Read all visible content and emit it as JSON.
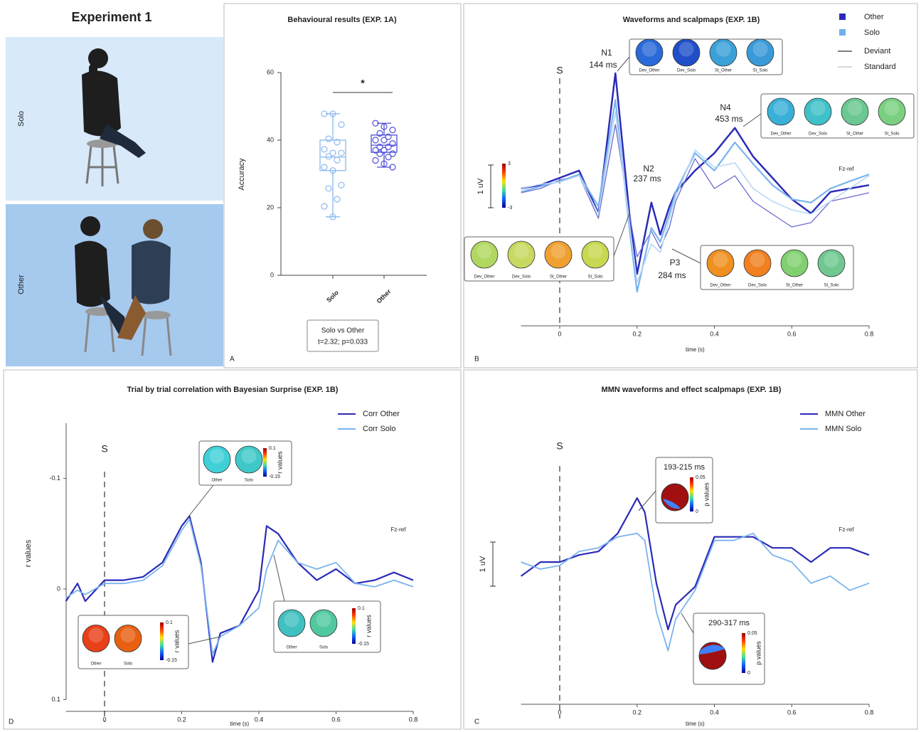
{
  "figure_title": "Experiment 1",
  "photos": [
    {
      "label": "Solo"
    },
    {
      "label": "Other"
    }
  ],
  "chart_data": [
    {
      "type": "box",
      "panel": "A",
      "title": "Behavioural results (EXP. 1A)",
      "ylabel": "Accuracy",
      "categories": [
        "Solo",
        "Other"
      ],
      "ylim": [
        0,
        60
      ],
      "yticks": [
        0,
        20,
        40,
        60
      ],
      "series": [
        {
          "color": "#8ab8ef",
          "values": [
            47.8,
            47.8,
            44.6,
            40.4,
            39.4,
            37.3,
            36.2,
            36.2,
            35.2,
            34.1,
            32,
            31,
            26.7,
            25.7,
            22.5,
            20.4,
            17.3
          ],
          "box": {
            "whisker_low": 17.3,
            "q1": 31,
            "median": 35,
            "q3": 40,
            "whisker_high": 47.8
          }
        },
        {
          "color": "#4f4fd8",
          "values": [
            45,
            44,
            43,
            42,
            41,
            40,
            40,
            39,
            38,
            38,
            37,
            37,
            36,
            36,
            35,
            34,
            33,
            32
          ],
          "box": {
            "whisker_low": 32,
            "q1": 36.4,
            "median": 38.5,
            "q3": 41.5,
            "whisker_high": 45
          }
        }
      ],
      "significance": "*",
      "test_result": [
        "Solo vs Other",
        "t=2.32; p=0.033"
      ]
    },
    {
      "type": "line",
      "panel": "B",
      "title": "Waveforms and scalpmaps (EXP. 1B)",
      "xlabel": "time (s)",
      "x": [
        -0.1,
        -0.05,
        0,
        0.05,
        0.1,
        0.144,
        0.18,
        0.2,
        0.237,
        0.26,
        0.284,
        0.3,
        0.35,
        0.4,
        0.453,
        0.5,
        0.55,
        0.6,
        0.65,
        0.7,
        0.75,
        0.8
      ],
      "xlim": [
        -0.1,
        0.8
      ],
      "xticks": [
        0,
        0.2,
        0.4,
        0.6,
        0.8
      ],
      "y_inverted": true,
      "scale_bar": {
        "value": 1,
        "label": "1 uV"
      },
      "colorbar_ticks": [
        3,
        -3
      ],
      "stimulus_label": "S",
      "reference_label": "Fz-ref",
      "legend": {
        "groups": [
          {
            "label": "Other",
            "color": "#2b2bb8"
          },
          {
            "label": "Solo",
            "color": "#6fb0f0"
          }
        ],
        "lines": [
          {
            "label": "Deviant",
            "color": "#555555"
          },
          {
            "label": "Standard",
            "color": "#cccccc"
          }
        ]
      },
      "series": [
        {
          "color": "#2b2bb8",
          "width": 2.5,
          "values": [
            0,
            -0.08,
            -0.25,
            -0.42,
            0.58,
            -2.7,
            0.58,
            2.0,
            0.33,
            1.08,
            0.42,
            0.08,
            -0.42,
            -0.83,
            -1.42,
            -0.75,
            -0.25,
            0.25,
            0.58,
            0.08,
            0,
            -0.08
          ]
        },
        {
          "color": "#6a6ad0",
          "width": 1.3,
          "values": [
            0.1,
            0.0,
            -0.2,
            -0.3,
            0.7,
            -1.5,
            0.6,
            1.6,
            1.0,
            1.4,
            0.9,
            0.3,
            -0.7,
            0.0,
            -0.3,
            0.3,
            0.6,
            0.9,
            0.8,
            0.3,
            0.2,
            0.1
          ]
        },
        {
          "color": "#7ab4ee",
          "width": 2.2,
          "values": [
            0.08,
            -0.05,
            -0.17,
            -0.33,
            0.42,
            -2.08,
            0.92,
            2.42,
            0.92,
            1.25,
            0.58,
            0.08,
            -0.83,
            -0.42,
            -1.08,
            -0.58,
            -0.08,
            0.25,
            0.33,
            0,
            -0.17,
            -0.33
          ]
        },
        {
          "color": "#b8d8f6",
          "width": 1.6,
          "values": [
            0.0,
            -0.1,
            -0.15,
            -0.3,
            0.6,
            -1.8,
            0.8,
            2.2,
            1.3,
            1.5,
            0.7,
            0.2,
            -0.9,
            -0.5,
            -0.6,
            0.0,
            0.3,
            0.5,
            0.6,
            0.3,
            0.0,
            -0.3
          ]
        }
      ],
      "peaks": [
        {
          "label": "N1",
          "latency": "144 ms"
        },
        {
          "label": "N4",
          "latency": "453 ms"
        },
        {
          "label": "N2",
          "latency": "237 ms"
        },
        {
          "label": "P3",
          "latency": "284 ms"
        }
      ],
      "insets": [
        {
          "labels": [
            "Dev_Other",
            "Dev_Solo",
            "St_Other",
            "St_Solo"
          ]
        },
        {
          "labels": [
            "Dev_Other",
            "Dev_Solo",
            "St_Other",
            "St_Solo"
          ]
        },
        {
          "labels": [
            "Dev_Other",
            "Dev_Solo",
            "St_Other",
            "St_Solo"
          ]
        },
        {
          "labels": [
            "Dev_Other",
            "Dev_Solo",
            "St_Other",
            "St_Solo"
          ]
        }
      ]
    },
    {
      "type": "line",
      "panel": "D",
      "title": "Trial by trial correlation with Bayesian Surprise (EXP. 1B)",
      "xlabel": "time (s)",
      "ylabel": "r values",
      "x": [
        -0.1,
        -0.07,
        -0.05,
        0,
        0.05,
        0.1,
        0.15,
        0.2,
        0.22,
        0.25,
        0.28,
        0.3,
        0.35,
        0.4,
        0.42,
        0.45,
        0.5,
        0.55,
        0.6,
        0.65,
        0.7,
        0.75,
        0.8
      ],
      "xlim": [
        -0.1,
        0.8
      ],
      "xticks": [
        0,
        0.2,
        0.4,
        0.6,
        0.8
      ],
      "ylim": [
        -0.15,
        0.1
      ],
      "yticks": [
        -0.1,
        0,
        0.1
      ],
      "y_inverted": true,
      "stimulus_label": "S",
      "reference_label": "Fz-ref",
      "series": [
        {
          "name": "Corr Other",
          "color": "#2b2bb8",
          "width": 2.2,
          "values": [
            0.011,
            -0.005,
            0.011,
            -0.008,
            -0.008,
            -0.011,
            -0.024,
            -0.057,
            -0.066,
            -0.024,
            0.066,
            0.04,
            0.033,
            0.001,
            -0.057,
            -0.05,
            -0.024,
            -0.008,
            -0.018,
            -0.005,
            -0.008,
            -0.015,
            -0.008
          ]
        },
        {
          "name": "Corr Solo",
          "color": "#7ab4ee",
          "width": 1.8,
          "values": [
            0.008,
            0.001,
            0.005,
            -0.005,
            -0.005,
            -0.008,
            -0.021,
            -0.053,
            -0.063,
            -0.021,
            0.059,
            0.043,
            0.033,
            0.017,
            -0.018,
            -0.044,
            -0.024,
            -0.018,
            -0.024,
            -0.005,
            -0.002,
            -0.008,
            -0.002
          ]
        }
      ],
      "insets": [
        {
          "labels": [
            "Other",
            "Solo"
          ],
          "colorbar_ticks": [
            0.1,
            -0.15
          ],
          "colorbar_label": "r values"
        },
        {
          "labels": [
            "Other",
            "Solo"
          ],
          "colorbar_ticks": [
            0.1,
            -0.15
          ],
          "colorbar_label": "r values"
        },
        {
          "labels": [
            "Other",
            "Solo"
          ],
          "colorbar_ticks": [
            0.1,
            -0.15
          ],
          "colorbar_label": "r values"
        }
      ]
    },
    {
      "type": "line",
      "panel": "C",
      "title": "MMN waveforms and effect scalpmaps (EXP. 1B)",
      "xlabel": "time (s)",
      "x": [
        -0.1,
        -0.05,
        0,
        0.05,
        0.1,
        0.15,
        0.2,
        0.22,
        0.25,
        0.28,
        0.3,
        0.35,
        0.4,
        0.45,
        0.5,
        0.55,
        0.6,
        0.65,
        0.7,
        0.75,
        0.8
      ],
      "xlim": [
        -0.1,
        0.8
      ],
      "xticks": [
        0,
        0.2,
        0.4,
        0.6,
        0.8
      ],
      "y_inverted": true,
      "scale_bar": {
        "value": 1,
        "label": "1 uV"
      },
      "stimulus_label": "S",
      "reference_label": "Fz-ref",
      "series": [
        {
          "name": "MMN Other",
          "color": "#2b2bb8",
          "width": 2.2,
          "values": [
            0.16,
            -0.16,
            -0.16,
            -0.32,
            -0.4,
            -0.81,
            -1.61,
            -1.29,
            0.32,
            1.37,
            0.81,
            0.4,
            -0.73,
            -0.73,
            -0.73,
            -0.48,
            -0.48,
            -0.16,
            -0.48,
            -0.48,
            -0.32
          ]
        },
        {
          "name": "MMN Solo",
          "color": "#7ab4ee",
          "width": 1.8,
          "values": [
            -0.16,
            0,
            -0.08,
            -0.4,
            -0.48,
            -0.73,
            -0.81,
            -0.65,
            0.97,
            1.85,
            1.13,
            0.48,
            -0.65,
            -0.65,
            -0.81,
            -0.32,
            -0.16,
            0.32,
            0.16,
            0.48,
            0.32
          ]
        }
      ],
      "insets": [
        {
          "window": "193-215 ms",
          "colorbar_ticks": [
            0.05,
            0
          ],
          "colorbar_label": "p values"
        },
        {
          "window": "290-317 ms",
          "colorbar_ticks": [
            0.05,
            0
          ],
          "colorbar_label": "p values"
        }
      ]
    }
  ]
}
